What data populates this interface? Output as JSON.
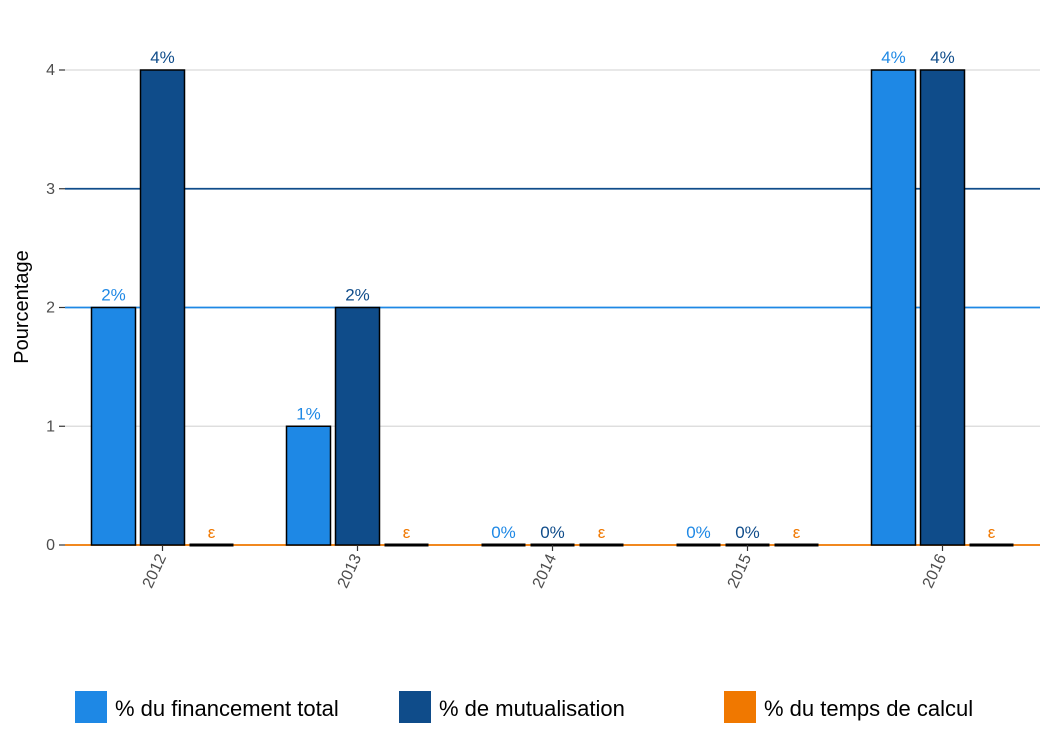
{
  "chart_data": {
    "type": "bar",
    "title": "",
    "xlabel": "",
    "ylabel": "Pourcentage",
    "ylim": [
      0,
      4.2
    ],
    "yticks": [
      "0",
      "1",
      "2",
      "3",
      "4"
    ],
    "categories": [
      "2012",
      "2013",
      "2014",
      "2015",
      "2016"
    ],
    "grid": true,
    "legend_position": "bottom",
    "series": [
      {
        "name": "% du financement total",
        "color": "#1e88e5",
        "values": [
          2,
          1,
          0,
          0,
          4
        ],
        "labels": [
          "2%",
          "1%",
          "0%",
          "0%",
          "4%"
        ]
      },
      {
        "name": "% de mutualisation",
        "color": "#0f4c8a",
        "values": [
          4,
          2,
          0,
          0,
          4
        ],
        "labels": [
          "4%",
          "2%",
          "0%",
          "0%",
          "4%"
        ]
      },
      {
        "name": "% du temps de calcul",
        "color": "#f07800",
        "values": [
          0,
          0,
          0,
          0,
          0
        ],
        "labels": [
          "ε",
          "ε",
          "ε",
          "ε",
          "ε"
        ]
      }
    ],
    "reference_lines": [
      {
        "value": 2,
        "color": "#1e88e5"
      },
      {
        "value": 3,
        "color": "#0f4c8a"
      },
      {
        "value": 0,
        "color": "#f07800"
      }
    ]
  }
}
